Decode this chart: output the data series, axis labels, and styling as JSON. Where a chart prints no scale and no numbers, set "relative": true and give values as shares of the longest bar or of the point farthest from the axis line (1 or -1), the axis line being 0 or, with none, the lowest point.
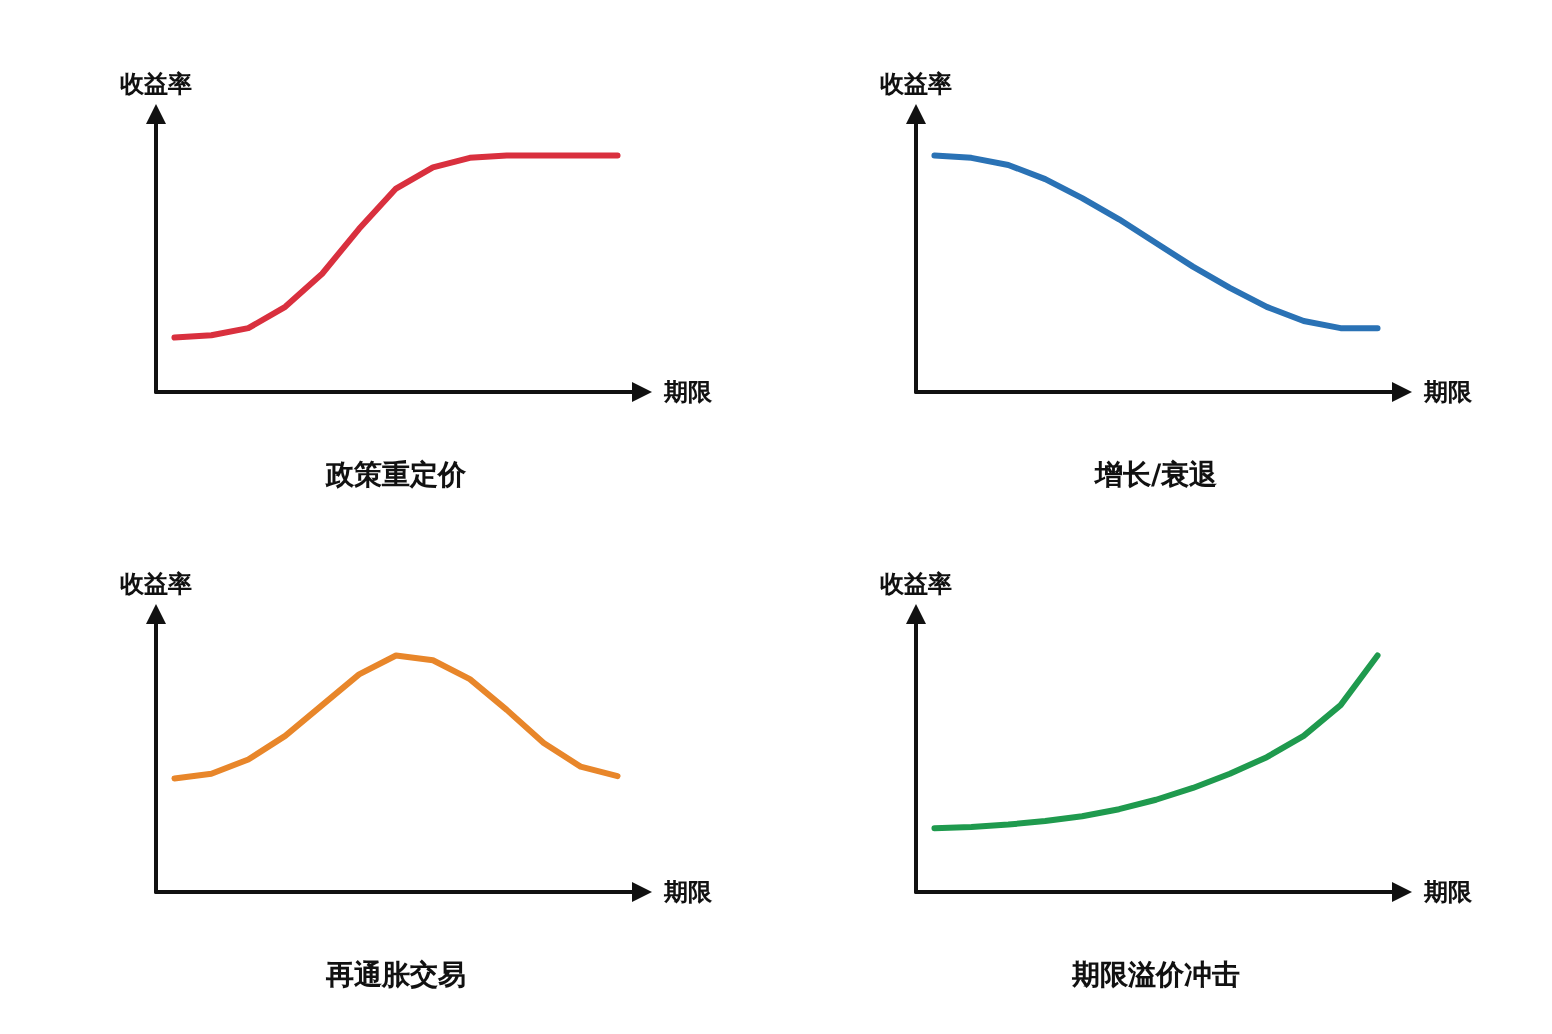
{
  "chart_data": [
    {
      "type": "line",
      "title": "政策重定价",
      "xlabel": "期限",
      "ylabel": "收益率",
      "relative": true,
      "marker": "none",
      "categories": [
        null,
        null,
        null,
        null,
        null,
        null,
        null,
        null,
        null,
        null,
        null,
        null,
        null
      ],
      "series": [
        {
          "color": "#d9303e",
          "values": [
            0.23,
            0.24,
            0.27,
            0.36,
            0.5,
            0.69,
            0.86,
            0.95,
            0.99,
            1,
            1,
            1,
            1
          ]
        }
      ]
    },
    {
      "type": "line",
      "title": "增长/衰退",
      "xlabel": "期限",
      "ylabel": "收益率",
      "relative": true,
      "marker": "none",
      "categories": [
        null,
        null,
        null,
        null,
        null,
        null,
        null,
        null,
        null,
        null,
        null,
        null,
        null
      ],
      "series": [
        {
          "color": "#2a72b5",
          "values": [
            1,
            0.99,
            0.96,
            0.9,
            0.82,
            0.73,
            0.63,
            0.53,
            0.44,
            0.36,
            0.3,
            0.27,
            0.27
          ]
        }
      ]
    },
    {
      "type": "line",
      "title": "再通胀交易",
      "xlabel": "期限",
      "ylabel": "收益率",
      "relative": true,
      "marker": "none",
      "categories": [
        null,
        null,
        null,
        null,
        null,
        null,
        null,
        null,
        null,
        null,
        null,
        null,
        null
      ],
      "series": [
        {
          "color": "#e8862a",
          "values": [
            0.48,
            0.5,
            0.56,
            0.66,
            0.79,
            0.92,
            1,
            0.98,
            0.9,
            0.77,
            0.63,
            0.53,
            0.49
          ]
        }
      ]
    },
    {
      "type": "line",
      "title": "期限溢价冲击",
      "xlabel": "期限",
      "ylabel": "收益率",
      "relative": true,
      "marker": "none",
      "categories": [
        null,
        null,
        null,
        null,
        null,
        null,
        null,
        null,
        null,
        null,
        null,
        null,
        null
      ],
      "series": [
        {
          "color": "#1f9a4e",
          "values": [
            0.27,
            0.275,
            0.285,
            0.3,
            0.32,
            0.35,
            0.39,
            0.44,
            0.5,
            0.57,
            0.66,
            0.79,
            1
          ]
        }
      ]
    }
  ]
}
